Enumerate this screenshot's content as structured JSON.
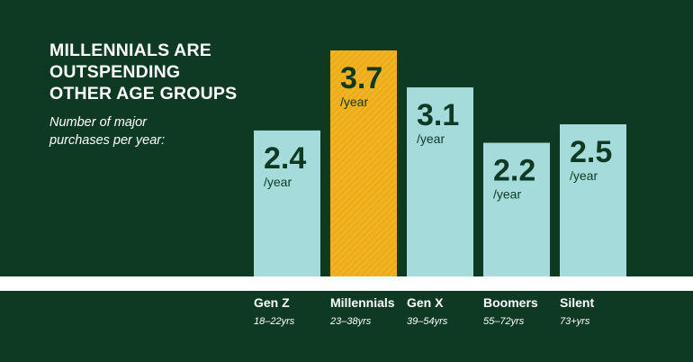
{
  "colors": {
    "background": "#0e3a24",
    "bar": "#a5dcdb",
    "highlight_bar": "#f2b321",
    "value_text": "#0e3a24",
    "baseline": "#ffffff",
    "label_text": "#ffffff"
  },
  "header": {
    "title_lines": [
      "MILLENNIALS ARE",
      "OUTSPENDING",
      "OTHER AGE GROUPS"
    ],
    "subtitle_lines": [
      "Number of major",
      "purchases per year:"
    ]
  },
  "chart_data": {
    "type": "bar",
    "title": "MILLENNIALS ARE OUTSPENDING OTHER AGE GROUPS",
    "subtitle": "Number of major purchases per year:",
    "categories": [
      "Gen Z",
      "Millennials",
      "Gen X",
      "Boomers",
      "Silent"
    ],
    "sublabels": [
      "18–22yrs",
      "23–38yrs",
      "39–54yrs",
      "55–72yrs",
      "73+yrs"
    ],
    "values": [
      2.4,
      3.7,
      3.1,
      2.2,
      2.5
    ],
    "value_labels": [
      "2.4",
      "3.7",
      "3.1",
      "2.2",
      "2.5"
    ],
    "unit_label": "/year",
    "highlight_index": 1,
    "ylim": [
      0,
      3.7
    ],
    "grid": false,
    "legend": "none"
  }
}
